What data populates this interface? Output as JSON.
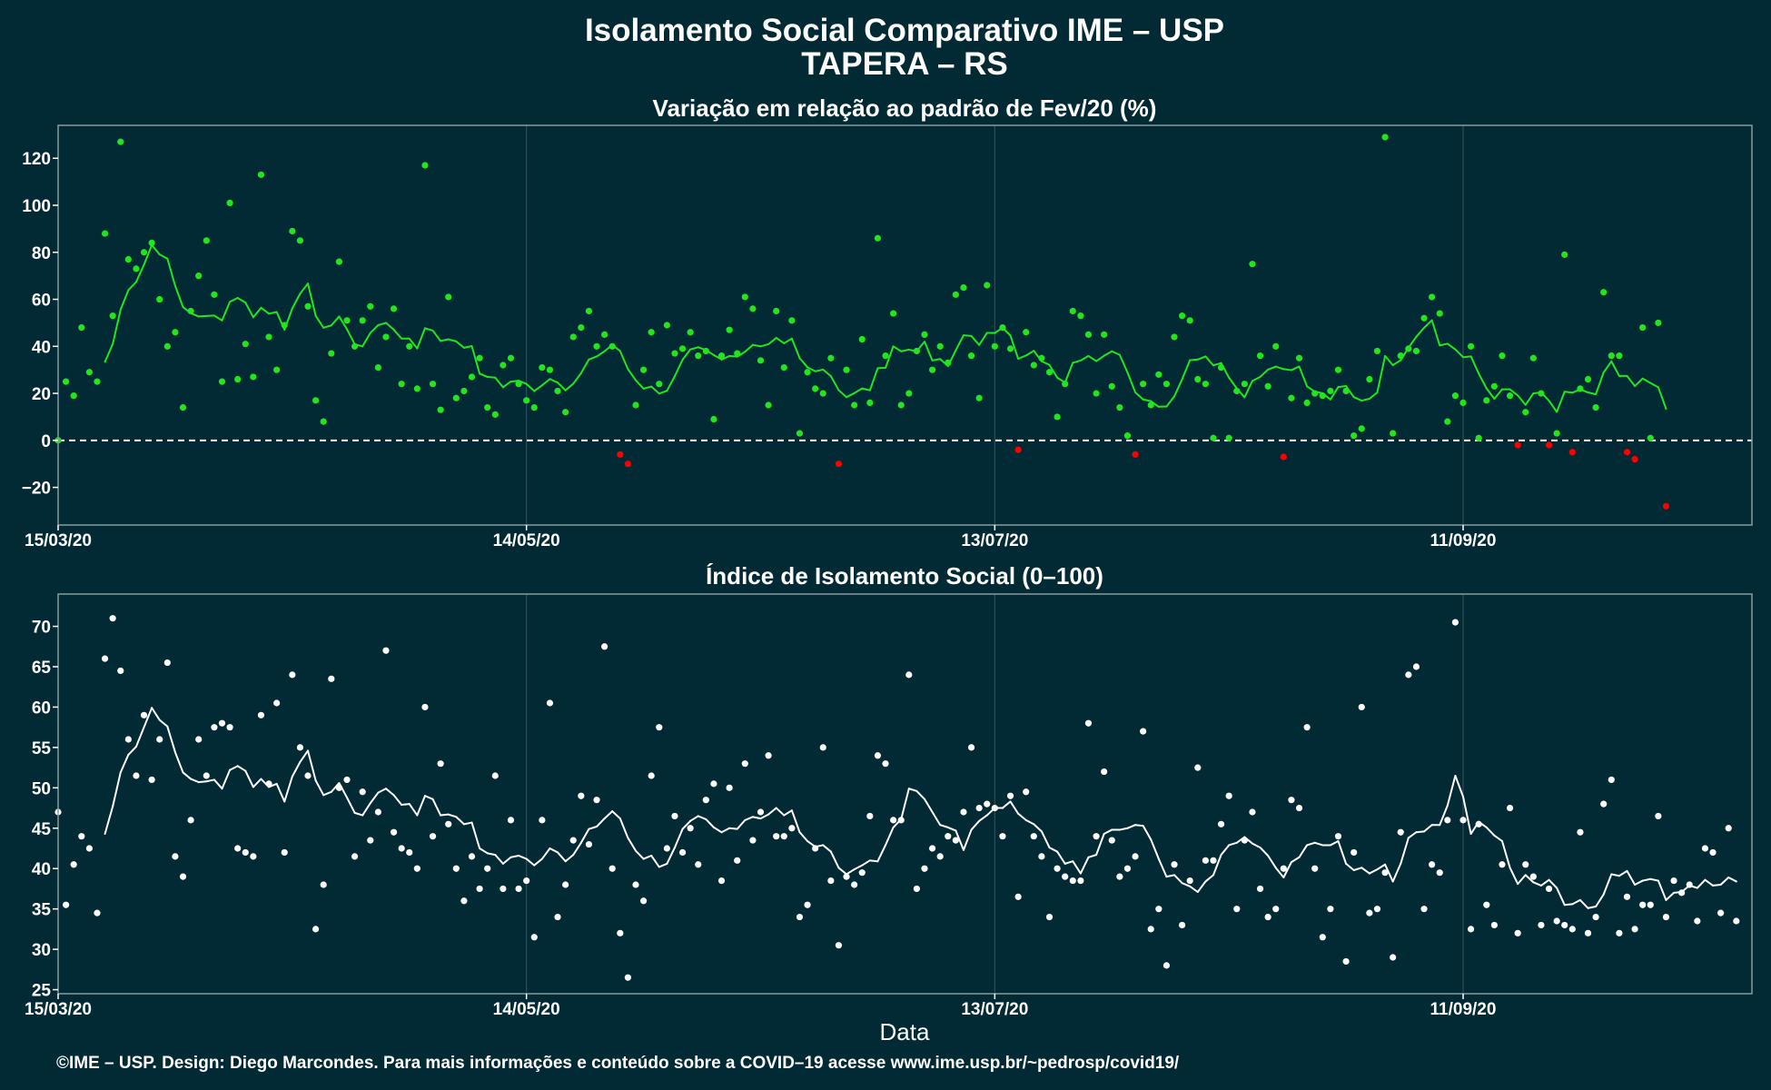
{
  "figure": {
    "title_line1": "Isolamento Social Comparativo IME – USP",
    "title_line2": "TAPERA – RS",
    "xlabel": "Data",
    "caption": "©IME – USP. Design: Diego Marcondes. Para mais informações e conteúdo sobre a COVID–19 acesse www.ime.usp.br/~pedrosp/covid19/"
  },
  "colors": {
    "background": "#022a35",
    "variation_positive": "#22e51e",
    "variation_negative": "#ff0000",
    "index": "#ffffff",
    "zero_line": "#ffffff"
  },
  "chart_data": [
    {
      "type": "scatter",
      "title": "Variação em relação ao padrão de Fev/20 (%)",
      "xlabel": "",
      "ylabel": "",
      "x_start": "2020-03-15",
      "x_ticks": [
        "15/03/20",
        "14/05/20",
        "13/07/20",
        "11/09/20"
      ],
      "x_tick_days": [
        0,
        60,
        120,
        180
      ],
      "xlim_days": [
        0,
        217
      ],
      "ylim": [
        -36,
        134
      ],
      "y_ticks": [
        -20,
        0,
        20,
        40,
        60,
        80,
        100,
        120
      ],
      "y_tick_labels": [
        "−20",
        "0",
        "20",
        "40",
        "60",
        "80",
        "100",
        "120"
      ],
      "reference_line": 0,
      "grid": true,
      "series": [
        {
          "kind": "points",
          "values": [
            0,
            25,
            19,
            48,
            29,
            25,
            88,
            53,
            127,
            77,
            73,
            80,
            84,
            60,
            40,
            46,
            14,
            55,
            70,
            85,
            62,
            25,
            101,
            26,
            41,
            27,
            113,
            44,
            30,
            49,
            89,
            85,
            57,
            17,
            8,
            37,
            76,
            51,
            40,
            51,
            57,
            31,
            44,
            56,
            24,
            40,
            22,
            117,
            24,
            13,
            61,
            18,
            21,
            27,
            35,
            14,
            11,
            32,
            35,
            24,
            17,
            14,
            31,
            30,
            21,
            12,
            44,
            48,
            55,
            40,
            45,
            40,
            -6,
            -10,
            15,
            30,
            46,
            24,
            49,
            37,
            39,
            46,
            36,
            38,
            9,
            36,
            47,
            37,
            61,
            56,
            34,
            15,
            55,
            31,
            51,
            3,
            29,
            22,
            20,
            35,
            -10,
            30,
            15,
            43,
            16,
            86,
            36,
            54,
            15,
            20,
            38,
            45,
            30,
            40,
            33,
            62,
            65,
            36,
            18,
            66,
            40,
            48,
            39,
            -4,
            46,
            32,
            35,
            29,
            10,
            24,
            55,
            53,
            45,
            20,
            45,
            23,
            14,
            2,
            -6,
            24,
            15,
            28,
            24,
            44,
            53,
            51,
            26,
            24,
            1,
            31,
            1,
            21,
            24,
            75,
            36,
            23,
            40,
            -7,
            18,
            35,
            16,
            20,
            19,
            21,
            30,
            21,
            2,
            5,
            26,
            38,
            129,
            3,
            36,
            39,
            38,
            52,
            61,
            54,
            8,
            19,
            16,
            40,
            1,
            17,
            23,
            36,
            19,
            -2,
            12,
            35,
            20,
            -2,
            3,
            79,
            -5,
            22,
            26,
            14,
            63,
            36,
            36,
            -5,
            -8,
            48,
            1,
            50,
            -28
          ]
        },
        {
          "kind": "moving_average",
          "values": [
            null,
            null,
            null,
            null,
            null,
            null,
            null,
            null,
            null,
            null,
            null,
            null,
            null,
            null,
            null,
            null,
            null,
            null,
            null,
            null,
            null,
            null,
            null,
            null,
            null,
            null,
            null,
            null,
            null,
            null,
            null,
            null,
            null,
            null,
            null,
            null,
            null,
            null,
            null,
            null,
            null,
            null,
            null,
            null,
            null,
            null,
            null,
            null,
            null,
            null,
            null,
            null,
            null,
            null,
            null,
            null,
            null,
            null,
            null,
            null,
            null,
            null,
            null,
            null,
            null,
            null,
            null,
            null,
            null,
            null,
            null,
            null,
            null,
            null,
            null,
            null,
            null,
            null,
            null,
            null,
            null,
            null,
            null,
            null,
            null,
            null,
            null,
            null,
            null,
            null,
            null,
            null,
            null,
            null,
            null,
            null,
            null,
            null,
            null,
            null,
            null,
            null,
            null,
            null,
            null,
            null,
            null,
            null,
            null,
            null,
            null,
            null,
            null,
            null,
            null,
            null,
            null,
            null,
            null,
            null,
            null,
            null,
            null,
            null,
            null,
            null,
            null,
            null,
            null,
            null,
            null,
            null,
            null,
            null,
            null,
            null,
            null,
            null,
            null,
            null,
            null,
            null,
            null,
            null,
            null,
            null,
            null,
            null,
            null,
            null,
            null,
            null,
            null,
            null,
            null,
            null,
            null,
            null,
            null,
            null,
            null,
            null,
            null,
            null,
            null,
            null,
            null,
            null,
            null,
            null,
            null,
            null,
            null,
            null,
            null,
            null,
            null,
            null,
            null,
            null,
            null,
            null,
            null,
            null,
            null,
            null,
            null,
            null,
            null,
            null,
            null,
            null,
            null,
            null,
            null,
            null,
            null,
            null,
            null,
            null,
            null,
            null,
            null,
            null,
            null,
            null,
            null,
            null,
            null,
            null,
            null,
            null,
            null,
            null,
            null,
            null,
            null
          ]
        }
      ]
    },
    {
      "type": "scatter",
      "title": "Índice de Isolamento Social (0–100)",
      "xlabel": "Data",
      "ylabel": "",
      "x_start": "2020-03-15",
      "x_ticks": [
        "15/03/20",
        "14/05/20",
        "13/07/20",
        "11/09/20"
      ],
      "x_tick_days": [
        0,
        60,
        120,
        180
      ],
      "xlim_days": [
        0,
        217
      ],
      "ylim": [
        24.5,
        74
      ],
      "y_ticks": [
        25,
        30,
        35,
        40,
        45,
        50,
        55,
        60,
        65,
        70
      ],
      "grid": true,
      "series": [
        {
          "kind": "points",
          "values": [
            47,
            35.5,
            40.5,
            44,
            42.5,
            34.5,
            66,
            71,
            64.5,
            56,
            51.5,
            59,
            51,
            56,
            65.5,
            41.5,
            39,
            46,
            56,
            51.5,
            57.5,
            58,
            57.5,
            42.5,
            42,
            41.5,
            59,
            50.5,
            60.5,
            42,
            64,
            55,
            51.5,
            32.5,
            38,
            63.5,
            50,
            51,
            41.5,
            49.5,
            43.5,
            47,
            67,
            44.5,
            42.5,
            42,
            40,
            60,
            44,
            53,
            45.5,
            40,
            36,
            41.5,
            37.5,
            40,
            51.5,
            37.5,
            46,
            37.5,
            38.5,
            31.5,
            46,
            60.5,
            34,
            38,
            43.5,
            49,
            43,
            48.5,
            67.5,
            40,
            32,
            26.5,
            38,
            36,
            51.5,
            57.5,
            42.5,
            46.5,
            42,
            45,
            40.5,
            48.5,
            50.5,
            38.5,
            50,
            41,
            53,
            43.5,
            47,
            54,
            44,
            44,
            45,
            34,
            35.5,
            42.5,
            55,
            38.5,
            30.5,
            39,
            38,
            39.5,
            46.5,
            54,
            53,
            46,
            46,
            64,
            37.5,
            40,
            42.5,
            41.5,
            44,
            43.5,
            47,
            55,
            47.5,
            48,
            47.5,
            44,
            49,
            36.5,
            49.5,
            44,
            41.5,
            34,
            40,
            39,
            38.5,
            38.5,
            58,
            44,
            52,
            43.5,
            39,
            40,
            41.5,
            57,
            32.5,
            35,
            28,
            40.5,
            33,
            38.5,
            52.5,
            41,
            41,
            45.5,
            49,
            35,
            43.5,
            47,
            37.5,
            34,
            35,
            40,
            48.5,
            47.5,
            57.5,
            40,
            31.5,
            35,
            44,
            28.5,
            42,
            60,
            34.5,
            35,
            39.5,
            29,
            44.5,
            64,
            65,
            35,
            40.5,
            39.5,
            46,
            70.5,
            46,
            32.5,
            45.5,
            35.5,
            33,
            40.5,
            47.5,
            32,
            40.5,
            39,
            33,
            37.5,
            33.5,
            33,
            32.5,
            44.5,
            32,
            34,
            48,
            51,
            32,
            36.5,
            32.5,
            35.5,
            35.5,
            46.5,
            34,
            38.5,
            37,
            38,
            33.5,
            42.5,
            42,
            34.5,
            45,
            33.5
          ]
        },
        {
          "kind": "moving_average",
          "values": [
            null,
            null,
            null,
            null,
            null,
            null,
            null,
            null,
            null,
            null,
            null,
            null,
            null,
            null,
            null,
            null,
            null,
            null,
            null,
            null,
            null,
            null,
            null,
            null,
            null,
            null,
            null,
            null,
            null,
            null,
            null,
            null,
            null,
            null,
            null,
            null,
            null,
            null,
            null,
            null,
            null,
            null,
            null,
            null,
            null,
            null,
            null,
            null,
            null,
            null,
            null,
            null,
            null,
            null,
            null,
            null,
            null,
            null,
            null,
            null,
            null,
            null,
            null,
            null,
            null,
            null,
            null,
            null,
            null,
            null,
            null,
            null,
            null,
            null,
            null,
            null,
            null,
            null,
            null,
            null,
            null,
            null,
            null,
            null,
            null,
            null,
            null,
            null,
            null,
            null,
            null,
            null,
            null,
            null,
            null,
            null,
            null,
            null,
            null,
            null,
            null,
            null,
            null,
            null,
            null,
            null,
            null,
            null,
            null,
            null,
            null,
            null,
            null,
            null,
            null,
            null,
            null,
            null,
            null,
            null,
            null,
            null,
            null,
            null,
            null,
            null,
            null,
            null,
            null,
            null,
            null,
            null,
            null,
            null,
            null,
            null,
            null,
            null,
            null,
            null,
            null,
            null,
            null,
            null,
            null,
            null,
            null,
            null,
            null,
            null,
            null,
            null,
            null,
            null,
            null,
            null,
            null,
            null,
            null,
            null,
            null,
            null,
            null,
            null,
            null,
            null,
            null,
            null,
            null,
            null,
            null,
            null,
            null,
            null,
            null,
            null,
            null,
            null,
            null,
            null,
            null,
            null,
            null,
            null,
            null,
            null,
            null,
            null,
            null,
            null,
            null,
            null,
            null,
            null,
            null,
            null,
            null,
            null,
            null,
            null,
            null,
            null,
            null,
            null,
            null,
            null,
            null,
            null,
            null,
            null,
            null,
            null,
            null,
            null,
            null,
            null,
            null,
            null
          ]
        }
      ]
    }
  ]
}
